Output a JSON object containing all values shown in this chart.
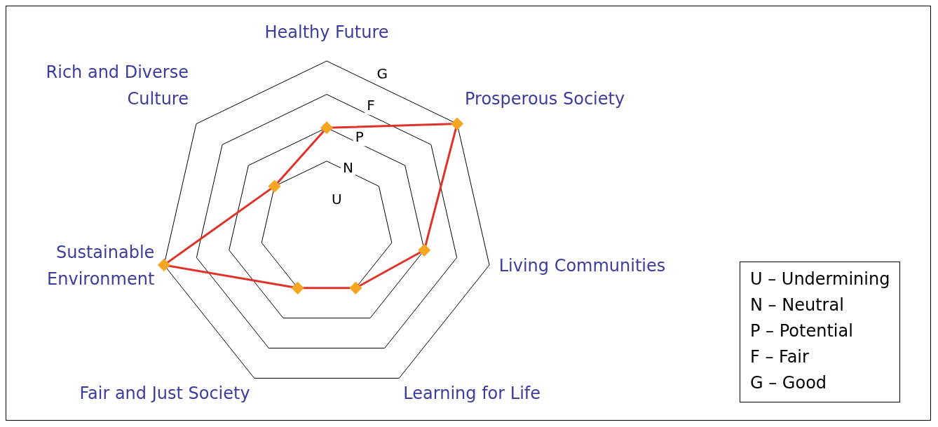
{
  "chart_data": {
    "type": "radar",
    "categories": [
      "Healthy Future",
      "Prosperous Society",
      "Living Communities",
      "Learning for Life",
      "Fair and Just Society",
      "Sustainable Environment",
      "Rich and Diverse Culture"
    ],
    "series": [
      {
        "color": "#e0322a",
        "colors": [
          "#f5a623",
          "#f5a623",
          "#f5a623",
          "#f5a623",
          "#f5a623",
          "#f5a623",
          "#f5a623"
        ],
        "values": [
          3,
          5,
          3,
          2,
          2,
          5,
          2
        ]
      }
    ],
    "ylim": [
      0,
      5
    ],
    "yticks": [
      {
        "value": 1,
        "label": "U"
      },
      {
        "value": 2,
        "label": "N"
      },
      {
        "value": 3,
        "label": "P"
      },
      {
        "value": 4,
        "label": "F"
      },
      {
        "value": 5,
        "label": "G"
      }
    ],
    "grid": true,
    "marker": "diamond",
    "legend": false,
    "annotations": [
      "U – Undermining",
      "N – Neutral",
      "P – Potential",
      "F – Fair",
      "G – Good"
    ]
  }
}
